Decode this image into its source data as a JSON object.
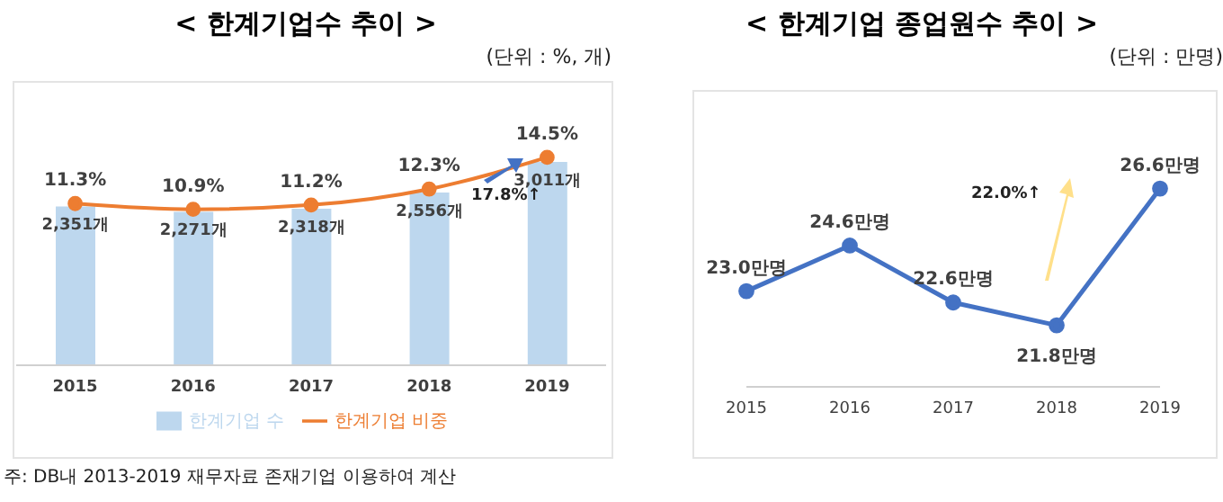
{
  "chart_data": [
    {
      "type": "bar",
      "title": "< 한계기업수 추이 >",
      "categories": [
        "2015",
        "2016",
        "2017",
        "2018",
        "2019"
      ],
      "series": [
        {
          "name": "한계기업 수",
          "color": "#bdd7ee",
          "values": [
            2351,
            2271,
            2318,
            2556,
            3011
          ],
          "value_labels": [
            "2,351개",
            "2,271개",
            "2,318개",
            "2,556개",
            "3,011개"
          ]
        },
        {
          "name": "한계기업 비중",
          "type": "line",
          "axis": "y2",
          "color": "#ed7d31",
          "values": [
            11.3,
            10.9,
            11.2,
            12.3,
            14.5
          ],
          "value_labels": [
            "11.3%",
            "10.9%",
            "11.2%",
            "12.3%",
            "14.5%"
          ]
        }
      ],
      "annotations": [
        "(단위 : %, 개)",
        "17.8%↑",
        "주: DB내 2013-2019 재무자료 존재기업 이용하여 계산"
      ],
      "legend": "bottom",
      "marker": "circle",
      "grid": false
    },
    {
      "type": "line",
      "title": "< 한계기업 종업원수 추이 >",
      "categories": [
        "2015",
        "2016",
        "2017",
        "2018",
        "2019"
      ],
      "series": [
        {
          "color": "#4472c4",
          "values": [
            23.0,
            24.6,
            22.6,
            21.8,
            26.6
          ],
          "value_labels": [
            "23.0만명",
            "24.6만명",
            "22.6만명",
            "21.8만명",
            "26.6만명"
          ]
        }
      ],
      "annotations": [
        "(단위 : 만명)",
        "22.0%↑"
      ],
      "legend": false,
      "marker": "circle",
      "grid": false
    }
  ]
}
